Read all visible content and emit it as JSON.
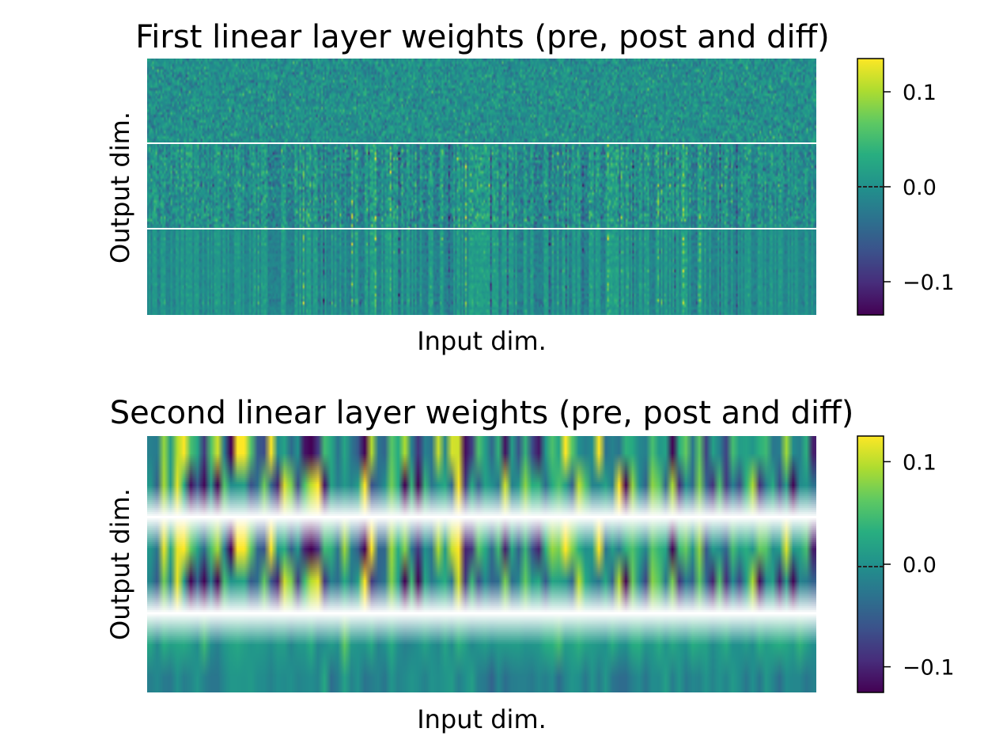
{
  "colormap": "viridis",
  "chart_data": [
    {
      "type": "heatmap",
      "title": "First linear layer weights (pre, post and diff)",
      "xlabel": "Input dim.",
      "ylabel": "Output dim.",
      "x_ticks_shown": false,
      "y_ticks_shown": false,
      "grid": false,
      "blocks": [
        "pre",
        "post",
        "diff"
      ],
      "block_rows": 32,
      "input_columns": 400,
      "vmin": -0.135,
      "vmax": 0.135,
      "colorbar": {
        "ticks": [
          -0.1,
          0.0,
          0.1
        ],
        "tick_labels": [
          "−0.1",
          "0.0",
          "0.1"
        ],
        "placement": "right"
      },
      "strong_columns": [
        93,
        105,
        122,
        136,
        145,
        150,
        180,
        190,
        205,
        215,
        240,
        250,
        260,
        275,
        290,
        305,
        315,
        320,
        330,
        342,
        352
      ]
    },
    {
      "type": "heatmap",
      "title": "Second linear layer weights (pre, post and diff)",
      "xlabel": "Input dim.",
      "ylabel": "Output dim.",
      "x_ticks_shown": false,
      "y_ticks_shown": false,
      "grid": false,
      "blocks": [
        "pre",
        "post",
        "diff"
      ],
      "block_rows": 2,
      "input_columns": 100,
      "vmin": -0.125,
      "vmax": 0.125,
      "colorbar": {
        "ticks": [
          -0.1,
          0.0,
          0.1
        ],
        "tick_labels": [
          "−0.1",
          "0.0",
          "0.1"
        ],
        "placement": "right"
      }
    }
  ]
}
